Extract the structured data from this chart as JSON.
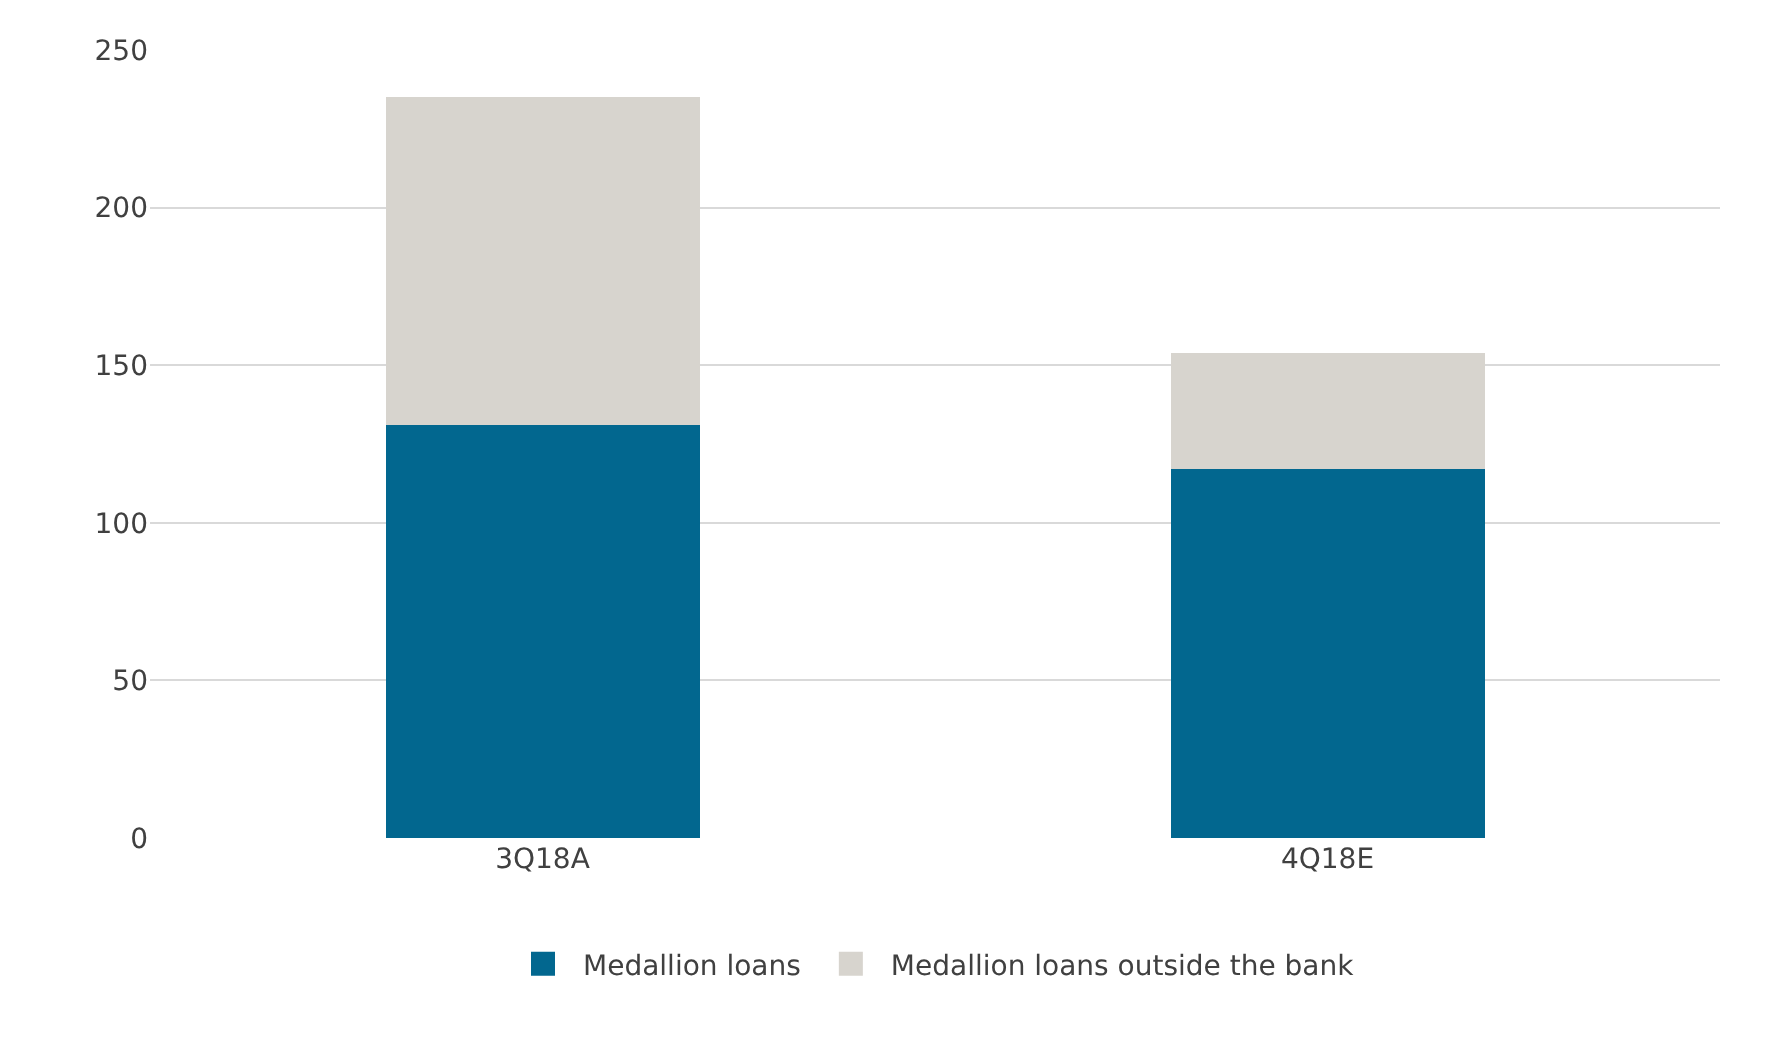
{
  "chart_data": {
    "type": "bar",
    "stacked": true,
    "categories": [
      "3Q18A",
      "4Q18E"
    ],
    "series": [
      {
        "name": "Medallion loans",
        "color": "#02678f",
        "values": [
          131,
          117
        ]
      },
      {
        "name": "Medallion loans outside the bank",
        "color": "#d7d4ce",
        "values": [
          104,
          37
        ]
      }
    ],
    "ylim": [
      0,
      250
    ],
    "yticks": [
      0,
      50,
      100,
      150,
      200,
      250
    ],
    "grid": "y",
    "legend": "bottom"
  }
}
